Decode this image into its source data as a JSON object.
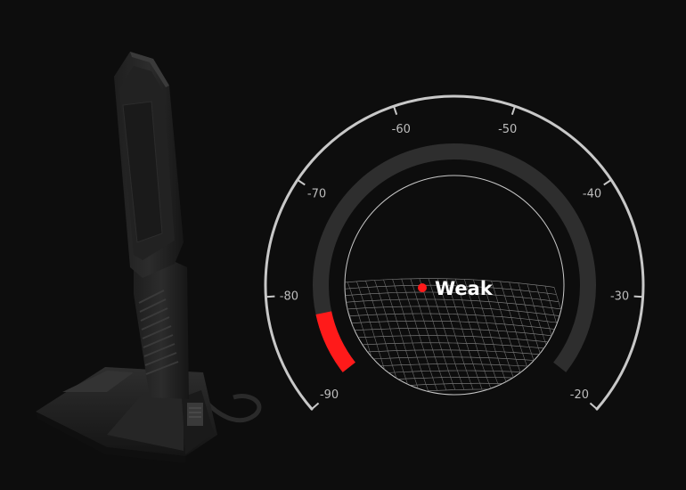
{
  "gauge": {
    "min": -90,
    "max": -20,
    "current_value": -90,
    "tick_labels": [
      "-90",
      "-80",
      "-70",
      "-60",
      "-50",
      "-40",
      "-30",
      "-20"
    ],
    "signal_status": "Weak",
    "colors": {
      "background": "#0d0d0d",
      "outer_arc": "#c8c8c8",
      "track": "#2e2e2e",
      "active_segment": "#ff1a1a",
      "status_dot": "#ff1a1a",
      "status_text": "#ffffff"
    }
  },
  "product": {
    "name_icon": "wifi-antenna-with-magnetic-base"
  }
}
